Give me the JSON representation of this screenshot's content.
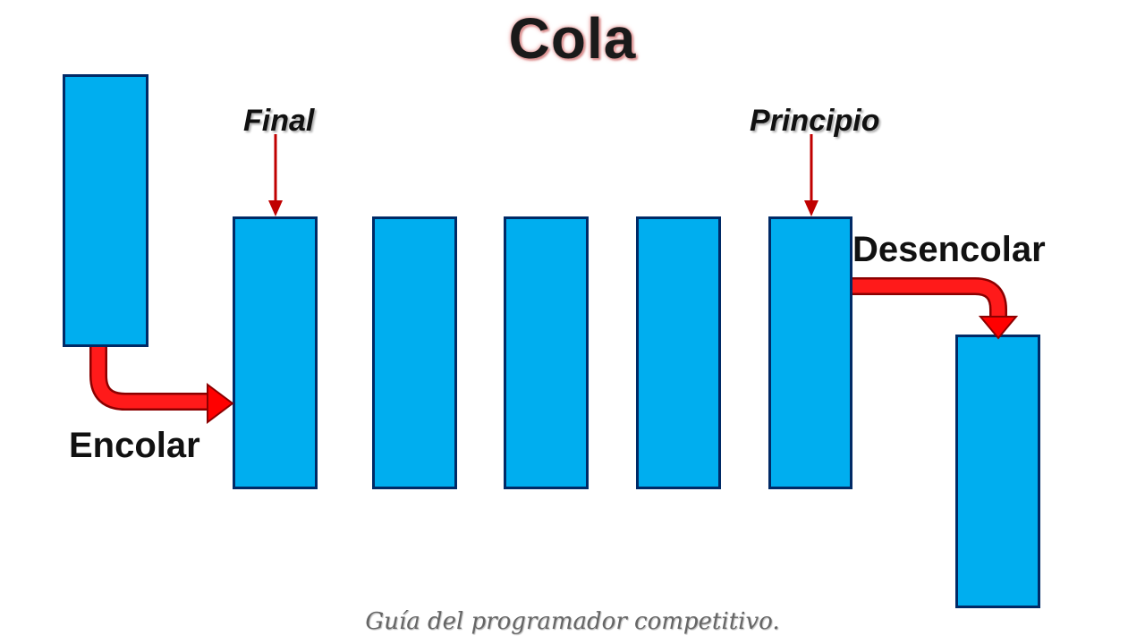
{
  "title": "Cola",
  "pointers": {
    "rear_label": "Final",
    "front_label": "Principio"
  },
  "operations": {
    "enqueue_label": "Encolar",
    "dequeue_label": "Desencolar"
  },
  "footer": "Guía del programador competitivo.",
  "colors": {
    "box_fill": "#00aeef",
    "box_border": "#002a66",
    "big_arrow": "#ff0000",
    "pointer_arrow": "#c00000"
  }
}
